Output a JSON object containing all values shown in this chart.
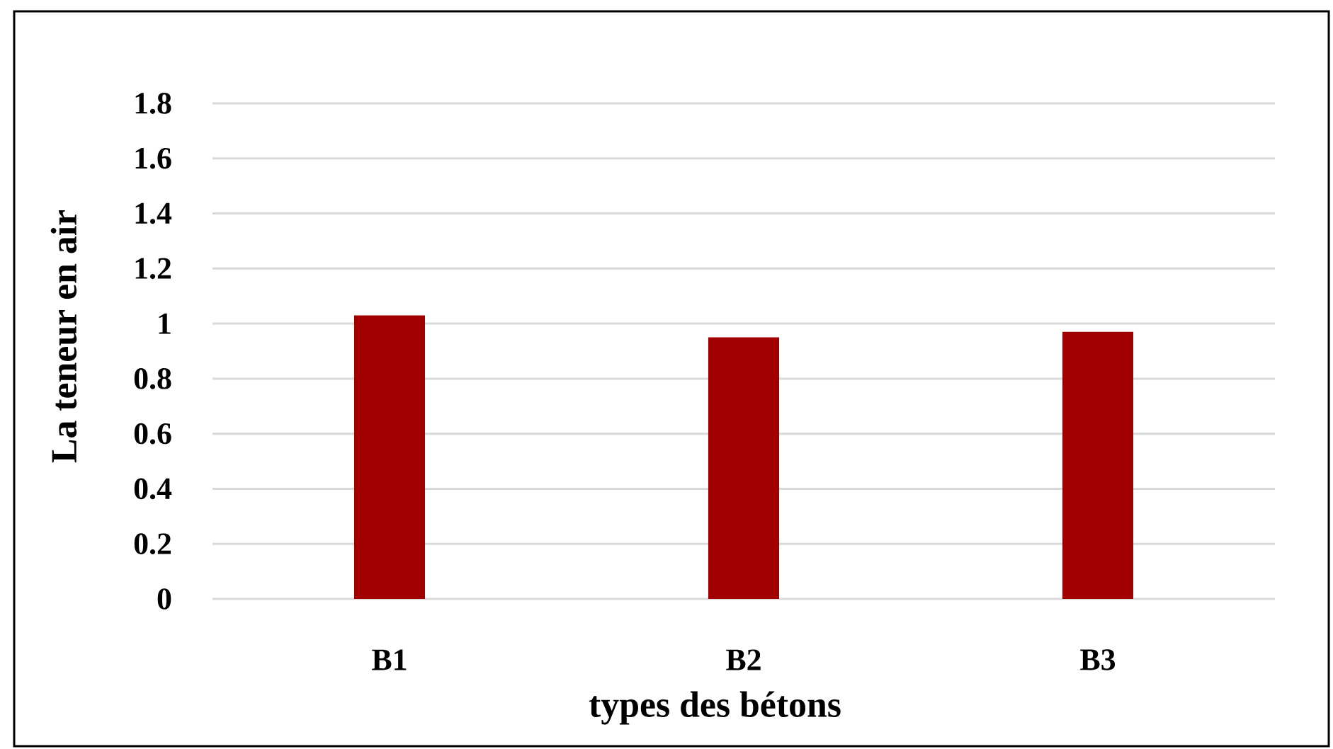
{
  "chart_data": {
    "type": "bar",
    "xlabel": "types des bétons",
    "ylabel": "La teneur en air",
    "categories": [
      "B1",
      "B2",
      "B3"
    ],
    "values": [
      1.03,
      0.95,
      0.97
    ],
    "color": "#a00000",
    "ylim": [
      0,
      1.8
    ],
    "yticks": [
      0,
      0.2,
      0.4,
      0.6,
      0.8,
      1,
      1.2,
      1.4,
      1.6,
      1.8
    ],
    "grid": "y"
  }
}
